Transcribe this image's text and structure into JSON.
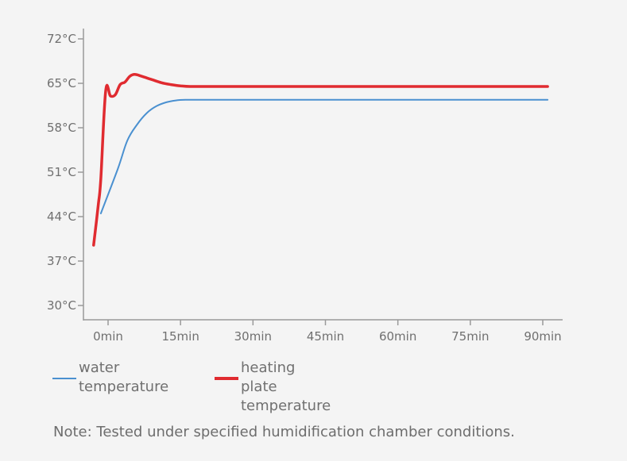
{
  "chart_data": {
    "type": "line",
    "x_ticks": [
      0,
      15,
      30,
      45,
      60,
      75,
      90
    ],
    "x_tick_labels": [
      "0min",
      "15min",
      "30min",
      "45min",
      "60min",
      "75min",
      "90min"
    ],
    "y_ticks": [
      30,
      37,
      44,
      51,
      58,
      65,
      72
    ],
    "y_tick_labels": [
      "30°C",
      "37°C",
      "44°C",
      "51°C",
      "58°C",
      "65°C",
      "72°C"
    ],
    "xlim": [
      -3,
      93
    ],
    "ylim": [
      28.5,
      74
    ],
    "legend_position": "bottom-left",
    "series": [
      {
        "name": "water temperature",
        "color": "#4a90d0",
        "x": [
          -1.5,
          2,
          4,
          6,
          8,
          10,
          12,
          14,
          16,
          18,
          20,
          25,
          30,
          45,
          60,
          75,
          91
        ],
        "y": [
          44.5,
          51.5,
          56,
          58.5,
          60.3,
          61.4,
          62.0,
          62.3,
          62.4,
          62.4,
          62.4,
          62.4,
          62.4,
          62.4,
          62.4,
          62.4,
          62.4
        ]
      },
      {
        "name": "heating plate temperature",
        "color": "#e02b30",
        "x": [
          -3,
          -2,
          -1.5,
          -0.5,
          0.5,
          1.5,
          2.5,
          3.5,
          4.5,
          5.5,
          7,
          9,
          11,
          13,
          15,
          17,
          20,
          30,
          45,
          60,
          75,
          91
        ],
        "y": [
          39.5,
          46,
          50,
          63.8,
          63.0,
          63.2,
          64.8,
          65.2,
          66.1,
          66.4,
          66.1,
          65.6,
          65.1,
          64.8,
          64.6,
          64.5,
          64.5,
          64.5,
          64.5,
          64.5,
          64.5,
          64.5
        ]
      }
    ]
  },
  "legend": {
    "water_label": "water\ntemperature",
    "heating_label": "heating plate\ntemperature"
  },
  "note": "Note: Tested under specified humidification chamber conditions."
}
